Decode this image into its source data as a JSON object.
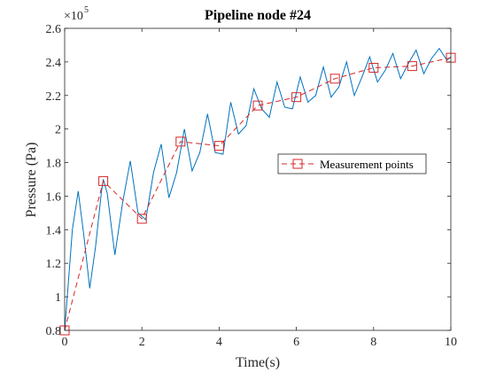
{
  "chart_data": {
    "type": "line",
    "title": "Pipeline node #24",
    "xlabel": "Time(s)",
    "ylabel": "Pressure (Pa)",
    "y_exponent_label": "×10",
    "y_exponent_power": "5",
    "xlim": [
      0,
      10
    ],
    "ylim": [
      0.8,
      2.6
    ],
    "x_ticks": [
      0,
      2,
      4,
      6,
      8,
      10
    ],
    "x_tick_labels": [
      "0",
      "2",
      "4",
      "6",
      "8",
      "10"
    ],
    "y_ticks": [
      0.8,
      1.0,
      1.2,
      1.4,
      1.6,
      1.8,
      2.0,
      2.2,
      2.4,
      2.6
    ],
    "y_tick_labels": [
      "0.8",
      "1",
      "1.2",
      "1.4",
      "1.6",
      "1.8",
      "2",
      "2.2",
      "2.4",
      "2.6"
    ],
    "grid": false,
    "legend_position": "center-right",
    "series": [
      {
        "name": "",
        "style": "solid",
        "color": "#0072BD",
        "x": [
          0,
          0.1,
          0.2,
          0.35,
          0.5,
          0.65,
          0.8,
          0.95,
          1.0,
          1.1,
          1.3,
          1.5,
          1.7,
          1.9,
          2.1,
          2.3,
          2.5,
          2.7,
          2.9,
          3.1,
          3.3,
          3.5,
          3.7,
          3.9,
          4.1,
          4.3,
          4.5,
          4.7,
          4.9,
          5.1,
          5.3,
          5.5,
          5.7,
          5.9,
          6.1,
          6.3,
          6.5,
          6.7,
          6.9,
          7.1,
          7.3,
          7.5,
          7.7,
          7.9,
          8.1,
          8.3,
          8.5,
          8.7,
          8.9,
          9.1,
          9.3,
          9.5,
          9.7,
          9.9,
          10.0
        ],
        "y": [
          0.8,
          1.1,
          1.4,
          1.63,
          1.36,
          1.05,
          1.3,
          1.62,
          1.7,
          1.62,
          1.25,
          1.56,
          1.81,
          1.5,
          1.46,
          1.74,
          1.91,
          1.59,
          1.74,
          2.0,
          1.75,
          1.86,
          2.09,
          1.86,
          1.85,
          2.16,
          1.97,
          2.02,
          2.24,
          2.12,
          2.07,
          2.28,
          2.13,
          2.12,
          2.31,
          2.16,
          2.2,
          2.37,
          2.19,
          2.25,
          2.4,
          2.2,
          2.31,
          2.43,
          2.28,
          2.35,
          2.45,
          2.3,
          2.39,
          2.47,
          2.33,
          2.42,
          2.48,
          2.41,
          2.43
        ]
      },
      {
        "name": "Measurement points",
        "style": "dashed",
        "marker": "square",
        "color": "#D62728",
        "x": [
          0,
          1,
          2,
          3,
          4,
          5,
          6,
          7,
          8,
          9,
          10
        ],
        "y": [
          0.8,
          1.69,
          1.465,
          1.925,
          1.9,
          2.14,
          2.19,
          2.3,
          2.365,
          2.375,
          2.425
        ]
      }
    ]
  }
}
